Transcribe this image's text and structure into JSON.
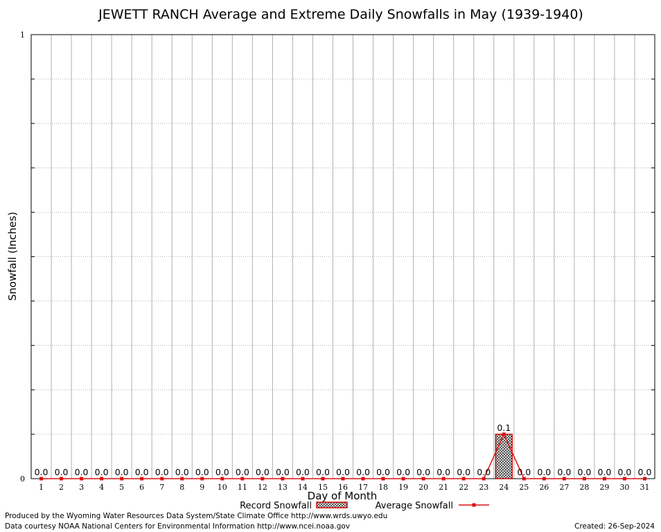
{
  "chart_data": {
    "type": "bar",
    "title": "JEWETT RANCH Average and Extreme Daily Snowfalls in May (1939-1940)",
    "xlabel": "Day of Month",
    "ylabel": "Snowfall (Inches)",
    "ylim": [
      0,
      1
    ],
    "yticks": [
      "0",
      "1"
    ],
    "grid": true,
    "legend_position": "bottom-center",
    "categories": [
      "1",
      "2",
      "3",
      "4",
      "5",
      "6",
      "7",
      "8",
      "9",
      "10",
      "11",
      "12",
      "13",
      "14",
      "15",
      "16",
      "17",
      "18",
      "19",
      "20",
      "21",
      "22",
      "23",
      "24",
      "25",
      "26",
      "27",
      "28",
      "29",
      "30",
      "31"
    ],
    "series": [
      {
        "name": "Record Snowfall",
        "kind": "bar",
        "values": [
          0,
          0,
          0,
          0,
          0,
          0,
          0,
          0,
          0,
          0,
          0,
          0,
          0,
          0,
          0,
          0,
          0,
          0,
          0,
          0,
          0,
          0,
          0,
          0.1,
          0,
          0,
          0,
          0,
          0,
          0,
          0
        ],
        "labels": [
          "0.0",
          "0.0",
          "0.0",
          "0.0",
          "0.0",
          "0.0",
          "0.0",
          "0.0",
          "0.0",
          "0.0",
          "0.0",
          "0.0",
          "0.0",
          "0.0",
          "0.0",
          "0.0",
          "0.0",
          "0.0",
          "0.0",
          "0.0",
          "0.0",
          "0.0",
          "0.0",
          "0.1",
          "0.0",
          "0.0",
          "0.0",
          "0.0",
          "0.0",
          "0.0",
          "0.0"
        ]
      },
      {
        "name": "Average Snowfall",
        "kind": "line",
        "values": [
          0,
          0,
          0,
          0,
          0,
          0,
          0,
          0,
          0,
          0,
          0,
          0,
          0,
          0,
          0,
          0,
          0,
          0,
          0,
          0,
          0,
          0,
          0,
          0.1,
          0,
          0,
          0,
          0,
          0,
          0,
          0
        ]
      }
    ]
  },
  "colors": {
    "bar_outline": "#cc0000",
    "line": "#dd1111",
    "grid": "#b0b0b0"
  },
  "footer": {
    "line1": "Produced by the Wyoming Water Resources Data System/State Climate Office http://www.wrds.uwyo.edu",
    "line2": "Data courtesy NOAA National Centers for Environmental Information http://www.ncei.noaa.gov",
    "created": "Created:  26-Sep-2024"
  }
}
